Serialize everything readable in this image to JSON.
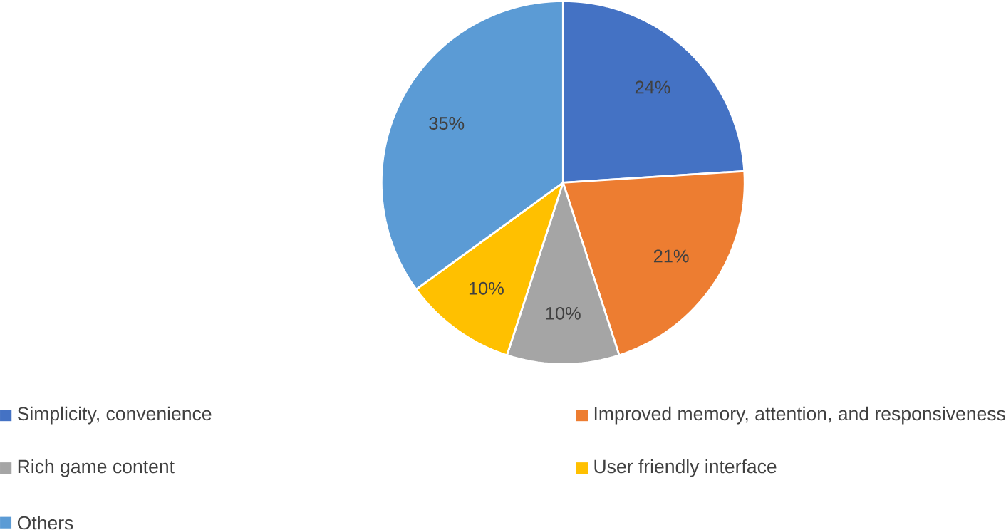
{
  "chart_data": {
    "type": "pie",
    "categories": [
      "Simplicity, convenience",
      "Improved memory, attention, and responsiveness",
      "Rich game content",
      "User friendly interface",
      "Others"
    ],
    "values": [
      24,
      21,
      10,
      10,
      35
    ],
    "colors": [
      "#4472c4",
      "#ed7d31",
      "#a5a5a5",
      "#ffc000",
      "#5b9bd5"
    ],
    "value_labels": [
      "24%",
      "21%",
      "10%",
      "10%",
      "35%"
    ],
    "legend": "bottom"
  }
}
